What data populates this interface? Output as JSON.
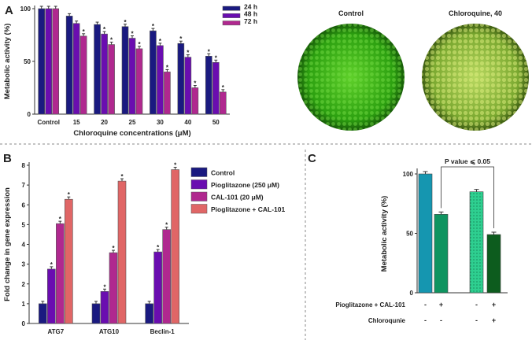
{
  "chart_data": [
    {
      "panel": "A",
      "type": "bar",
      "xlabel": "Chloroquine concentrations (μM)",
      "ylabel": "Metabolic activity (%)",
      "ylim": [
        0,
        100
      ],
      "yticks": [
        0,
        50,
        100
      ],
      "categories": [
        "Control",
        "15",
        "20",
        "25",
        "30",
        "40",
        "50"
      ],
      "series": [
        {
          "name": "24 h",
          "color": "#1a1a80",
          "values": [
            100,
            93,
            85,
            83,
            79,
            67,
            55
          ],
          "sig": [
            false,
            false,
            false,
            true,
            true,
            true,
            true
          ]
        },
        {
          "name": "48 h",
          "color": "#6a0db0",
          "values": [
            100,
            86,
            76,
            72,
            65,
            54,
            49
          ],
          "sig": [
            false,
            false,
            true,
            true,
            true,
            true,
            true
          ]
        },
        {
          "name": "72 h",
          "color": "#b0288f",
          "values": [
            100,
            74,
            66,
            62,
            40,
            25,
            21
          ],
          "sig": [
            false,
            true,
            true,
            true,
            true,
            true,
            true
          ]
        }
      ],
      "legend": "top-right"
    },
    {
      "panel": "B",
      "type": "bar",
      "ylabel": "Fold change in  gene expression",
      "ylim": [
        0,
        8
      ],
      "yticks": [
        0,
        1,
        2,
        3,
        4,
        5,
        6,
        7,
        8
      ],
      "categories": [
        "ATG7",
        "ATG10",
        "Beclin-1"
      ],
      "series": [
        {
          "name": "Control",
          "color": "#1a1a80",
          "values": [
            1,
            1,
            1
          ],
          "sig": [
            false,
            false,
            false
          ]
        },
        {
          "name": "Pioglitazone (250 μM)",
          "color": "#6a0db0",
          "values": [
            2.75,
            1.62,
            3.62
          ],
          "sig": [
            true,
            true,
            true
          ]
        },
        {
          "name": "CAL-101 (20 μM)",
          "color": "#b0288f",
          "values": [
            5.05,
            3.58,
            4.75
          ],
          "sig": [
            true,
            true,
            true
          ]
        },
        {
          "name": "Pioglitazone + CAL-101",
          "color": "#e06666",
          "values": [
            6.28,
            7.2,
            7.78
          ],
          "sig": [
            true,
            true,
            true
          ]
        }
      ],
      "legend": "top-right"
    },
    {
      "panel": "C",
      "type": "bar",
      "ylabel": "Metabolic activity (%)",
      "ylim": [
        0,
        100
      ],
      "yticks": [
        0,
        50,
        100
      ],
      "values": [
        100,
        66,
        85,
        49
      ],
      "colors": [
        "#1596b0",
        "#0f9460",
        "#2ecf90",
        "#0d5c1e"
      ],
      "annotation": "P value ⩽ 0.05",
      "row_labels": [
        "Pioglitazone + CAL-101",
        "Chloroqunie"
      ],
      "rows": [
        [
          "-",
          "+",
          "-",
          "+"
        ],
        [
          "-",
          "-",
          "-",
          "+"
        ]
      ]
    }
  ],
  "panel_labels": [
    "A",
    "B",
    "C"
  ],
  "images": {
    "left_label": "Control",
    "right_label": "Chloroquine, 40"
  }
}
